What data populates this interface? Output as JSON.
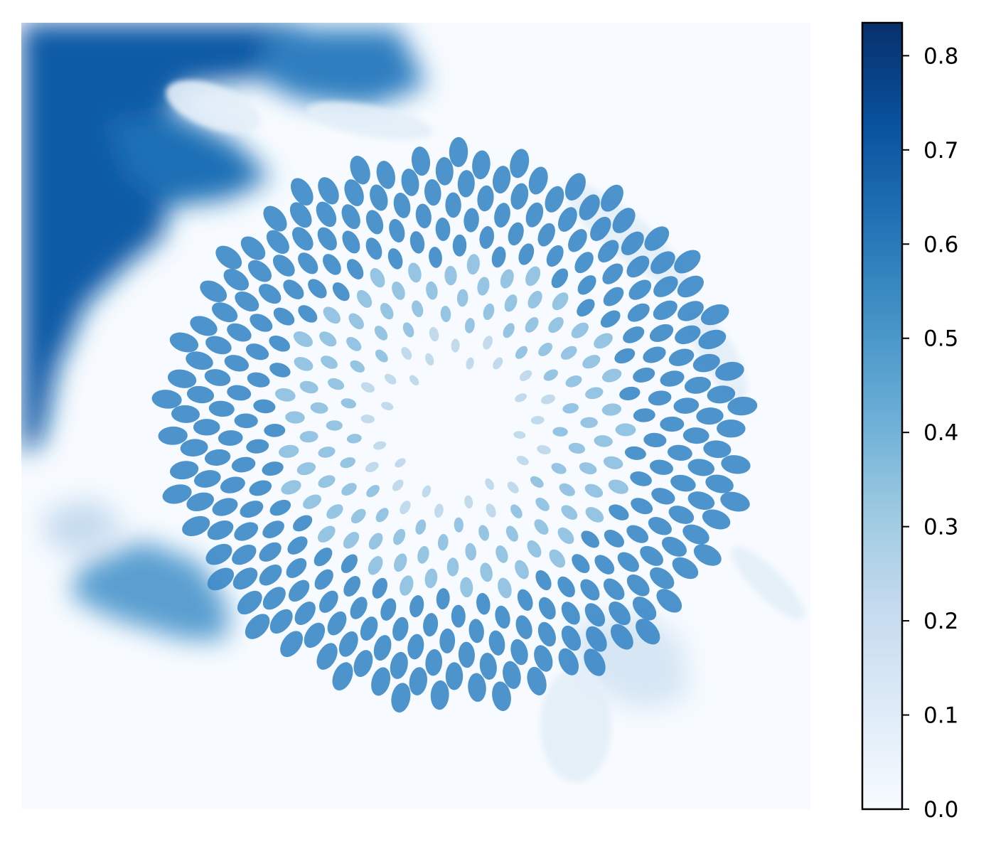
{
  "chart_data": {
    "type": "heatmap",
    "title": "",
    "xlabel": "",
    "ylabel": "",
    "axes_visible": false,
    "image_content": "sunflower",
    "colormap": {
      "name": "Blues",
      "stops": [
        "#f7fbff",
        "#deebf7",
        "#c6dbef",
        "#9ecae1",
        "#6baed6",
        "#4292c6",
        "#2171b5",
        "#08519c",
        "#08306b"
      ]
    },
    "colorbar": {
      "range": [
        0.0,
        0.835
      ],
      "ticks": [
        0.0,
        0.1,
        0.2,
        0.3,
        0.4,
        0.5,
        0.6,
        0.7,
        0.8
      ],
      "tick_labels": [
        "0.0",
        "0.1",
        "0.2",
        "0.3",
        "0.4",
        "0.5",
        "0.6",
        "0.7",
        "0.8"
      ]
    }
  }
}
